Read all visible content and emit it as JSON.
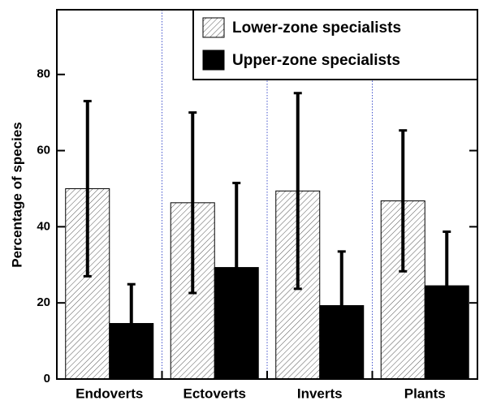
{
  "chart_data": {
    "type": "bar",
    "y_label": "Percentage of species",
    "categories": [
      "Endoverts",
      "Ectoverts",
      "Inverts",
      "Plants"
    ],
    "series": [
      {
        "name": "Lower-zone specialists",
        "color": "#ffffff",
        "hatch": true,
        "values": [
          50,
          46.3,
          49.4,
          46.8
        ],
        "errors": [
          23,
          23.7,
          25.7,
          18.5
        ]
      },
      {
        "name": "Upper-zone specialists",
        "color": "#000000",
        "hatch": false,
        "values": [
          14.6,
          29.3,
          19.3,
          24.5
        ],
        "errors": [
          10.3,
          22.2,
          14.2,
          14.2
        ]
      }
    ],
    "ylim": [
      0,
      97
    ],
    "yticks": [
      0,
      20,
      40,
      60,
      80
    ],
    "legend": "upper right"
  }
}
